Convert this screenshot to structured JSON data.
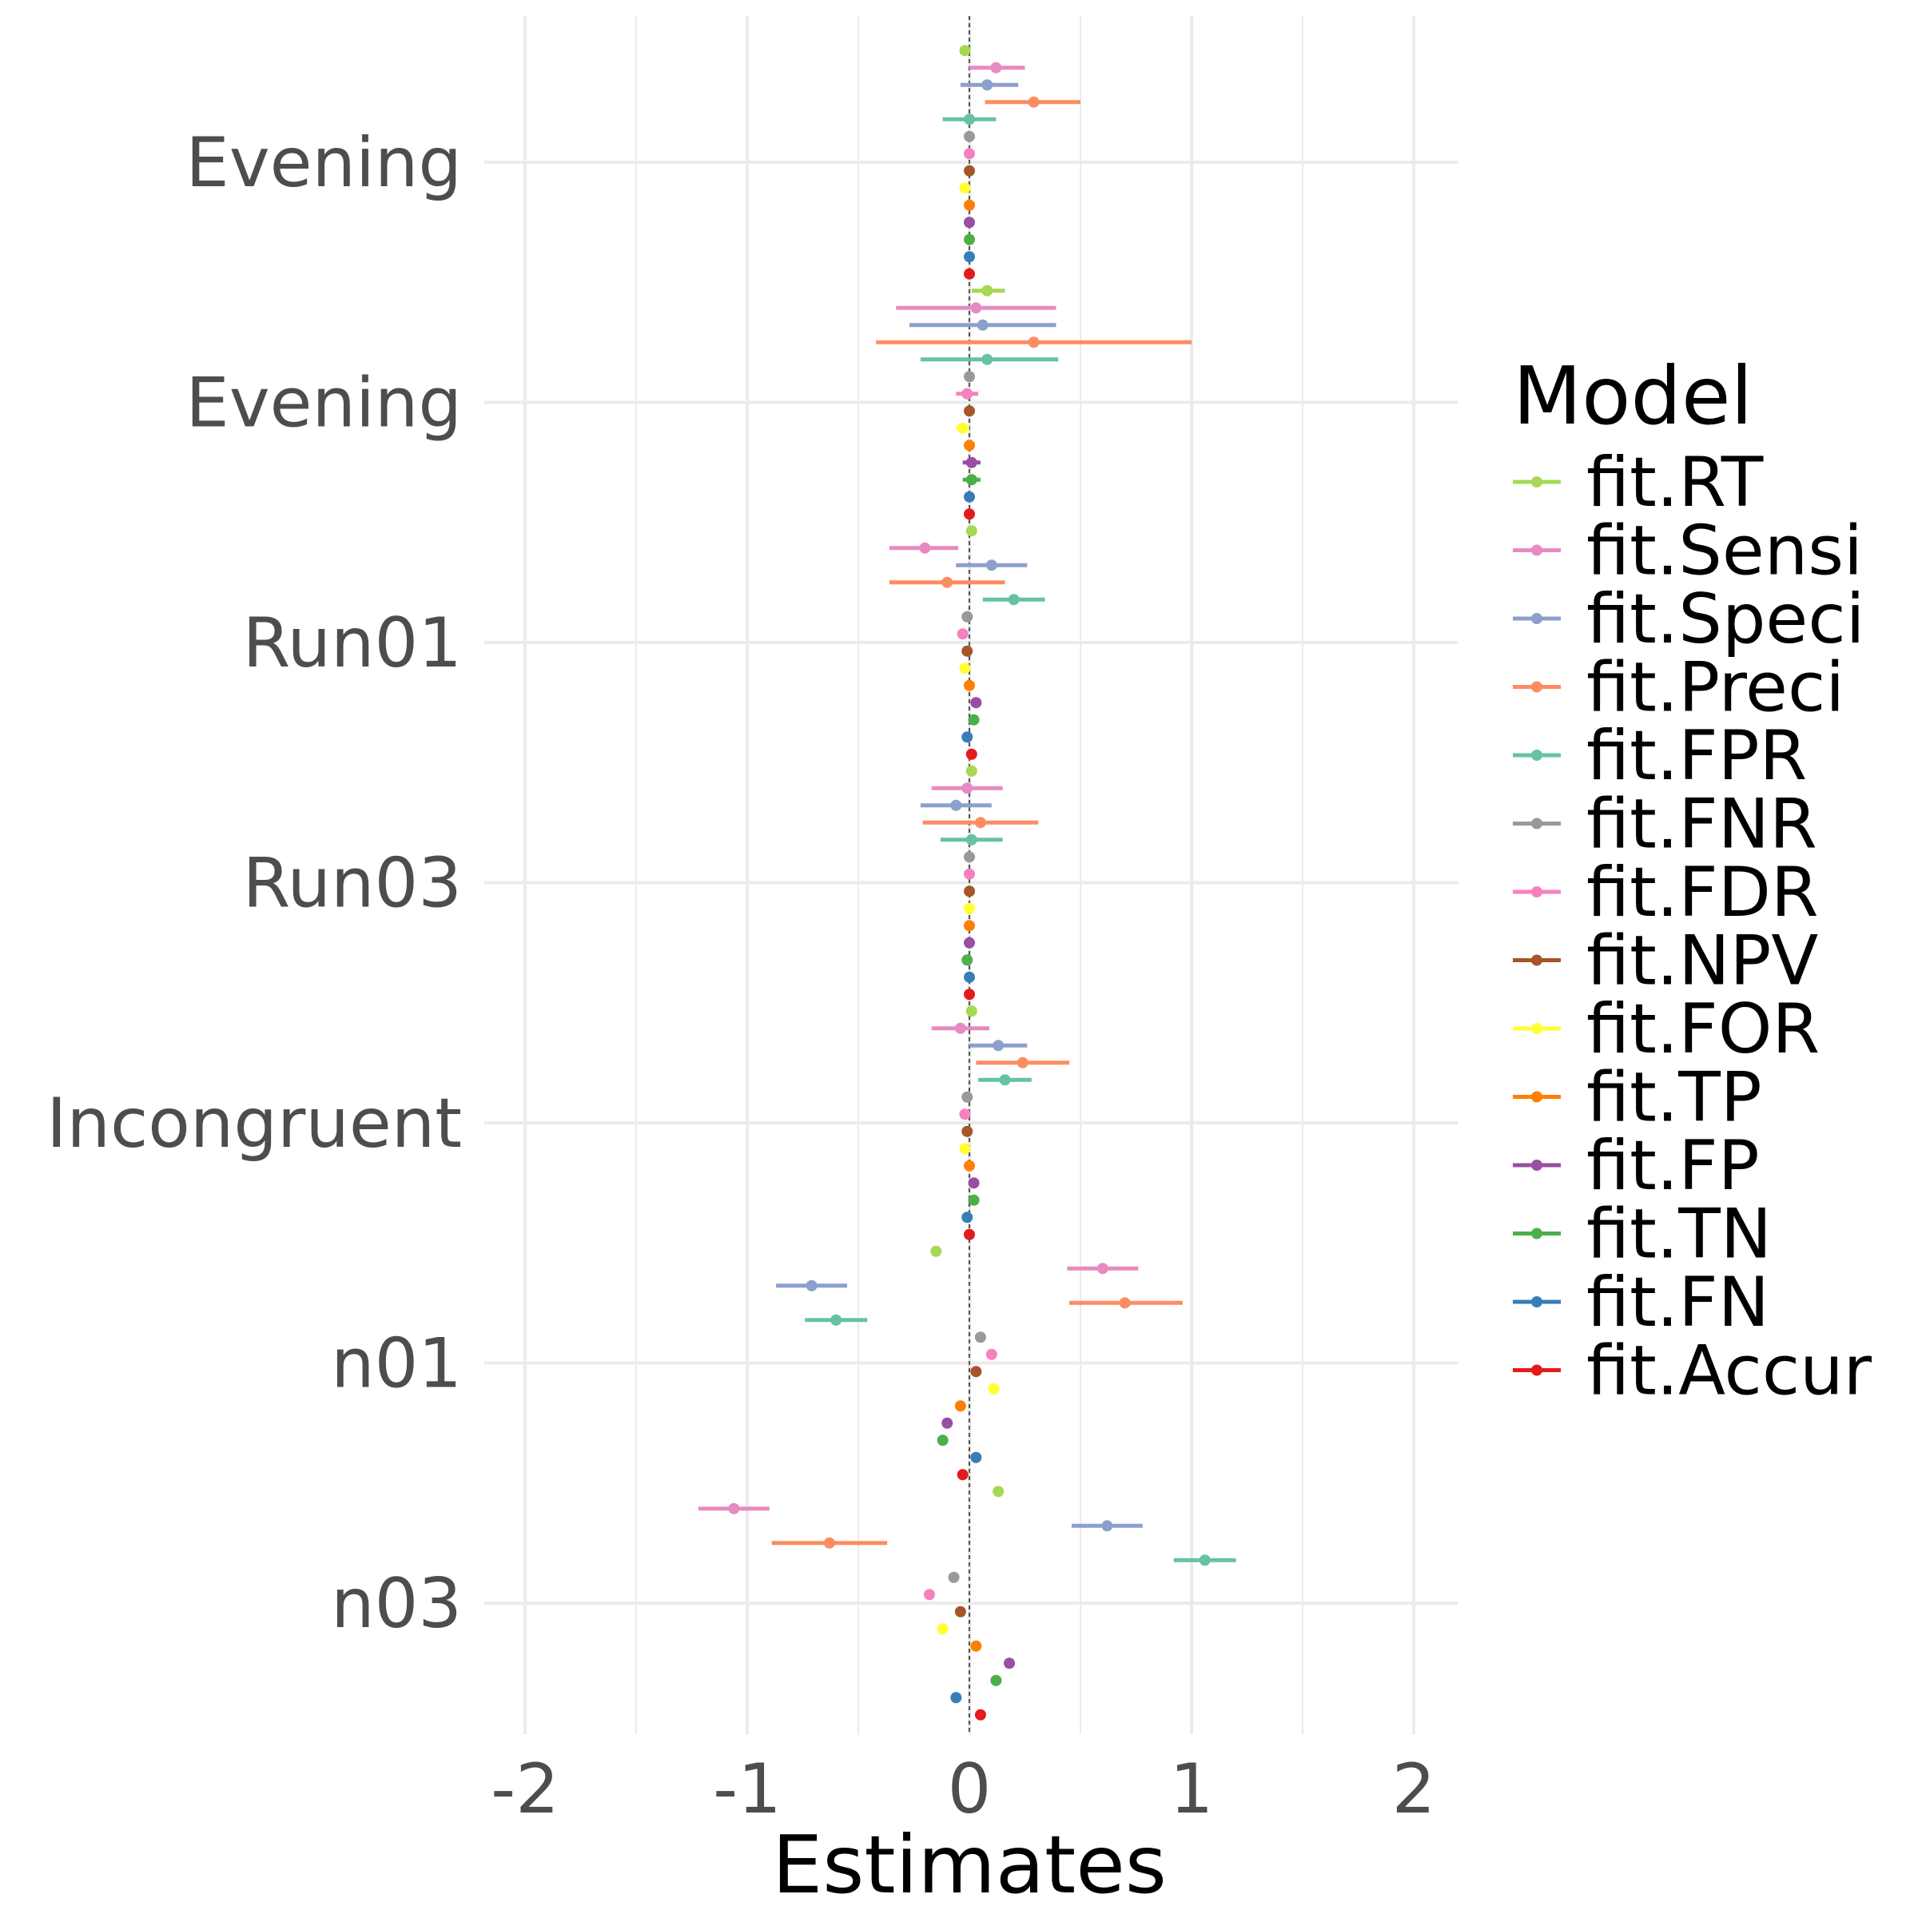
{
  "chart_data": {
    "type": "scatter",
    "subtype": "coefficient-plot-with-error-bars",
    "title": "",
    "xlabel": "Estimates",
    "ylabel": "",
    "xlim": [
      -2.2,
      2.2
    ],
    "x_ticks": [
      "-2",
      "-1",
      "0",
      "1",
      "2"
    ],
    "x_tick_values": [
      -2,
      -1,
      0,
      1,
      2
    ],
    "reference_line": 0,
    "categories": [
      "Evening",
      "Evening",
      "Run01",
      "Run03",
      "Incongruent",
      "n01",
      "n03"
    ],
    "grid": true,
    "legend": {
      "title": "Model",
      "placement": "right",
      "entries": [
        "fit.RT",
        "fit.Sensi",
        "fit.Speci",
        "fit.Preci",
        "fit.FPR",
        "fit.FNR",
        "fit.FDR",
        "fit.NPV",
        "fit.FOR",
        "fit.TP",
        "fit.FP",
        "fit.TN",
        "fit.FN",
        "fit.Accur"
      ]
    },
    "series": [
      {
        "name": "fit.RT",
        "color": "#a6d854",
        "estimate": [
          -0.02,
          0.08,
          0.01,
          0.01,
          0.01,
          -0.15,
          0.13
        ],
        "lower": [
          -0.04,
          0.01,
          -0.01,
          -0.01,
          -0.01,
          -0.17,
          0.11
        ],
        "upper": [
          0.0,
          0.16,
          0.03,
          0.03,
          0.03,
          -0.13,
          0.15
        ]
      },
      {
        "name": "fit.Sensi",
        "color": "#e78ac3",
        "estimate": [
          0.12,
          0.03,
          -0.2,
          -0.01,
          -0.04,
          0.6,
          -1.06
        ],
        "lower": [
          0.0,
          -0.33,
          -0.36,
          -0.17,
          -0.17,
          0.44,
          -1.22
        ],
        "upper": [
          0.25,
          0.39,
          -0.05,
          0.15,
          0.09,
          0.76,
          -0.9
        ]
      },
      {
        "name": "fit.Speci",
        "color": "#8da0cb",
        "estimate": [
          0.08,
          0.06,
          0.1,
          -0.06,
          0.13,
          -0.71,
          0.62
        ],
        "lower": [
          -0.04,
          -0.27,
          -0.06,
          -0.22,
          0.0,
          -0.87,
          0.46
        ],
        "upper": [
          0.22,
          0.39,
          0.26,
          0.1,
          0.26,
          -0.55,
          0.78
        ]
      },
      {
        "name": "fit.Preci",
        "color": "#fc8d62",
        "estimate": [
          0.29,
          0.29,
          -0.1,
          0.05,
          0.24,
          0.7,
          -0.63
        ],
        "lower": [
          0.07,
          -0.42,
          -0.36,
          -0.21,
          0.03,
          0.45,
          -0.89
        ],
        "upper": [
          0.5,
          1.0,
          0.16,
          0.31,
          0.45,
          0.96,
          -0.37
        ]
      },
      {
        "name": "fit.FPR",
        "color": "#66c2a5",
        "estimate": [
          0.0,
          0.08,
          0.2,
          0.01,
          0.16,
          -0.6,
          1.06
        ],
        "lower": [
          -0.12,
          -0.22,
          0.06,
          -0.13,
          0.04,
          -0.74,
          0.92
        ],
        "upper": [
          0.12,
          0.4,
          0.34,
          0.15,
          0.28,
          -0.46,
          1.2
        ]
      },
      {
        "name": "fit.FNR",
        "color": "#999999",
        "estimate": [
          0.0,
          0.0,
          -0.01,
          0.0,
          -0.01,
          0.05,
          -0.07
        ],
        "lower": [
          -0.01,
          -0.01,
          -0.02,
          -0.01,
          -0.02,
          0.04,
          -0.08
        ],
        "upper": [
          0.01,
          0.01,
          0.0,
          0.01,
          0.0,
          0.06,
          -0.06
        ]
      },
      {
        "name": "fit.FDR",
        "color": "#f781bf",
        "estimate": [
          0.0,
          -0.01,
          -0.03,
          0.0,
          -0.02,
          0.1,
          -0.18
        ],
        "lower": [
          -0.01,
          -0.06,
          -0.05,
          -0.01,
          -0.04,
          0.09,
          -0.19
        ],
        "upper": [
          0.01,
          0.04,
          -0.01,
          0.01,
          0.0,
          0.11,
          -0.17
        ]
      },
      {
        "name": "fit.NPV",
        "color": "#a65628",
        "estimate": [
          0.0,
          0.0,
          -0.01,
          0.0,
          -0.01,
          0.03,
          -0.04
        ],
        "lower": [
          -0.01,
          -0.01,
          -0.02,
          -0.01,
          -0.02,
          0.02,
          -0.05
        ],
        "upper": [
          0.01,
          0.01,
          0.0,
          0.01,
          0.0,
          0.04,
          -0.03
        ]
      },
      {
        "name": "fit.FOR",
        "color": "#ffff33",
        "estimate": [
          -0.02,
          -0.03,
          -0.02,
          0.0,
          -0.02,
          0.11,
          -0.12
        ],
        "lower": [
          -0.03,
          -0.06,
          -0.03,
          -0.01,
          -0.03,
          0.1,
          -0.13
        ],
        "upper": [
          -0.01,
          0.0,
          -0.01,
          0.01,
          -0.01,
          0.12,
          -0.11
        ]
      },
      {
        "name": "fit.TP",
        "color": "#ff7f00",
        "estimate": [
          0.0,
          0.0,
          0.0,
          0.0,
          0.0,
          -0.04,
          0.03
        ],
        "lower": [
          -0.01,
          -0.01,
          -0.01,
          -0.01,
          -0.01,
          -0.05,
          0.02
        ],
        "upper": [
          0.01,
          0.01,
          0.01,
          0.01,
          0.01,
          -0.03,
          0.04
        ]
      },
      {
        "name": "fit.FP",
        "color": "#984ea3",
        "estimate": [
          0.0,
          0.01,
          0.03,
          0.0,
          0.02,
          -0.1,
          0.18
        ],
        "lower": [
          -0.01,
          -0.03,
          0.02,
          -0.01,
          0.01,
          -0.11,
          0.17
        ],
        "upper": [
          0.01,
          0.05,
          0.04,
          0.01,
          0.03,
          -0.09,
          0.19
        ]
      },
      {
        "name": "fit.TN",
        "color": "#4daf4a",
        "estimate": [
          0.0,
          0.01,
          0.02,
          -0.01,
          0.02,
          -0.12,
          0.12
        ],
        "lower": [
          -0.01,
          -0.03,
          0.01,
          -0.02,
          0.01,
          -0.13,
          0.11
        ],
        "upper": [
          0.01,
          0.05,
          0.03,
          0.0,
          0.03,
          -0.11,
          0.13
        ]
      },
      {
        "name": "fit.FN",
        "color": "#377eb8",
        "estimate": [
          0.0,
          0.0,
          -0.01,
          0.0,
          -0.01,
          0.03,
          -0.06
        ],
        "lower": [
          -0.01,
          -0.01,
          -0.02,
          -0.01,
          -0.02,
          0.02,
          -0.07
        ],
        "upper": [
          0.01,
          0.01,
          0.0,
          0.01,
          0.0,
          0.04,
          -0.05
        ]
      },
      {
        "name": "fit.Accur",
        "color": "#e41a1c",
        "estimate": [
          0.0,
          0.0,
          0.01,
          0.0,
          0.0,
          -0.03,
          0.05
        ],
        "lower": [
          -0.01,
          -0.01,
          0.0,
          -0.01,
          -0.01,
          -0.04,
          0.04
        ],
        "upper": [
          0.01,
          0.01,
          0.02,
          0.01,
          0.01,
          -0.02,
          0.06
        ]
      }
    ]
  }
}
